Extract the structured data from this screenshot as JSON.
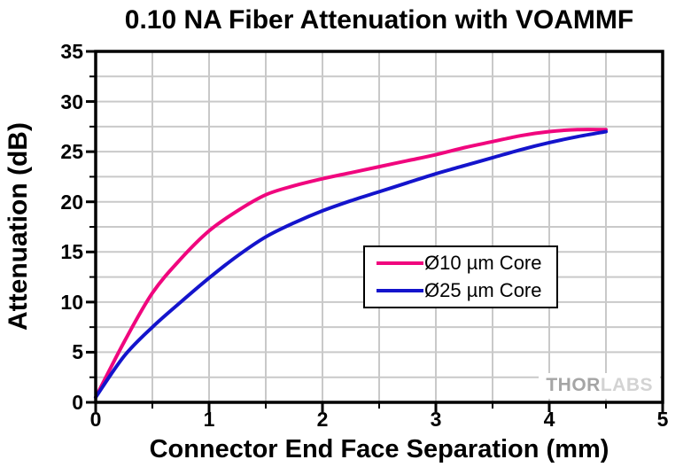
{
  "title": "0.10 NA Fiber Attenuation with VOAMMF",
  "watermark": {
    "part1": "THOR",
    "part2": "LABS"
  },
  "chart_data": {
    "type": "line",
    "title": "0.10 NA Fiber Attenuation with VOAMMF",
    "xlabel": "Connector End Face Separation (mm)",
    "ylabel": "Attenuation (dB)",
    "xlim": [
      0,
      5
    ],
    "ylim": [
      0,
      35
    ],
    "x_major_ticks": [
      0,
      1,
      2,
      3,
      4,
      5
    ],
    "y_major_ticks": [
      0,
      5,
      10,
      15,
      20,
      25,
      30,
      35
    ],
    "x_minor_step": 0.5,
    "y_minor_step": 2.5,
    "grid": "minor",
    "grid_color": "#C9C9C9",
    "axis_color": "#000000",
    "legend_position": "center-right",
    "x": [
      0,
      0.25,
      0.5,
      0.75,
      1.0,
      1.25,
      1.5,
      1.75,
      2.0,
      2.25,
      2.5,
      2.75,
      3.0,
      3.25,
      3.5,
      3.75,
      4.0,
      4.25,
      4.5
    ],
    "series": [
      {
        "name": "Ø10 µm Core",
        "color": "#F0067E",
        "values": [
          0.5,
          6.0,
          10.9,
          14.3,
          17.1,
          19.1,
          20.7,
          21.6,
          22.3,
          22.9,
          23.5,
          24.1,
          24.7,
          25.4,
          26.0,
          26.6,
          27.0,
          27.2,
          27.2
        ]
      },
      {
        "name": "Ø25 µm Core",
        "color": "#1414CC",
        "values": [
          0.5,
          4.6,
          7.5,
          10.0,
          12.4,
          14.6,
          16.5,
          17.9,
          19.1,
          20.1,
          21.0,
          21.9,
          22.8,
          23.6,
          24.4,
          25.2,
          25.9,
          26.5,
          27.0
        ]
      }
    ]
  }
}
